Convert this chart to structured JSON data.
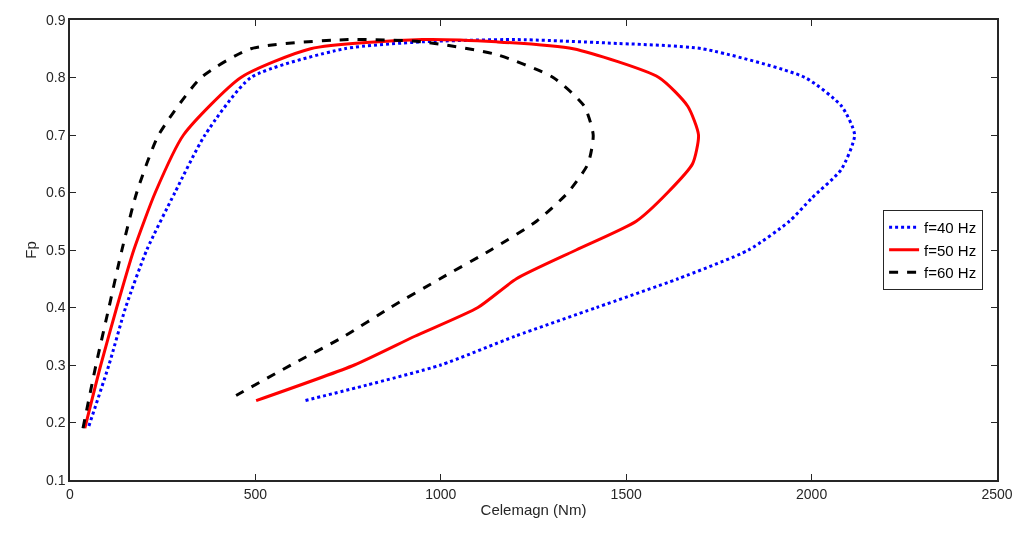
{
  "chart_data": {
    "type": "line",
    "xlabel": "Celemagn (Nm)",
    "ylabel": "Fp",
    "xlim": [
      0,
      2500
    ],
    "ylim": [
      0.1,
      0.9
    ],
    "xticks": [
      0,
      500,
      1000,
      1500,
      2000,
      2500
    ],
    "yticks": [
      0.1,
      0.2,
      0.3,
      0.4,
      0.5,
      0.6,
      0.7,
      0.8,
      0.9
    ],
    "legend": "right",
    "marker": "none",
    "series": [
      {
        "name": "f=40 Hz",
        "color": "#0000ff",
        "line_style": "dotted",
        "x": [
          51,
          105,
          150,
          207,
          283,
          364,
          488,
          740,
          950,
          1200,
          1450,
          1705,
          1982,
          2081,
          2116,
          2080,
          2000,
          1940,
          1830,
          1640,
          1420,
          1200,
          1000,
          800,
          633
        ],
        "values": [
          0.194,
          0.3,
          0.4,
          0.5,
          0.6,
          0.7,
          0.8,
          0.85,
          0.862,
          0.866,
          0.86,
          0.85,
          0.8,
          0.75,
          0.7,
          0.64,
          0.59,
          0.55,
          0.5,
          0.45,
          0.4,
          0.35,
          0.3,
          0.265,
          0.238
        ]
      },
      {
        "name": "f=50 Hz",
        "color": "#ff0000",
        "line_style": "solid",
        "x": [
          40,
          83,
          126,
          172,
          230,
          306,
          461,
          649,
          950,
          1150,
          1357,
          1588,
          1666,
          1695,
          1679,
          1612,
          1527,
          1365,
          1204,
          1100,
          930,
          767,
          502
        ],
        "values": [
          0.19,
          0.3,
          0.4,
          0.5,
          0.6,
          0.7,
          0.8,
          0.85,
          0.866,
          0.862,
          0.85,
          0.8,
          0.75,
          0.7,
          0.65,
          0.6,
          0.55,
          0.5,
          0.45,
          0.4,
          0.35,
          0.3,
          0.238
        ]
      },
      {
        "name": "f=60 Hz",
        "color": "#000000",
        "line_style": "dashed",
        "x": [
          35,
          70,
          105,
          140,
          180,
          239,
          354,
          488,
          750,
          950,
          1150,
          1303,
          1387,
          1411,
          1397,
          1343,
          1258,
          1135,
          998,
          864,
          740,
          596,
          448
        ],
        "values": [
          0.19,
          0.3,
          0.4,
          0.5,
          0.6,
          0.7,
          0.8,
          0.85,
          0.866,
          0.862,
          0.84,
          0.8,
          0.75,
          0.7,
          0.65,
          0.6,
          0.55,
          0.5,
          0.45,
          0.4,
          0.35,
          0.3,
          0.247
        ]
      }
    ]
  }
}
